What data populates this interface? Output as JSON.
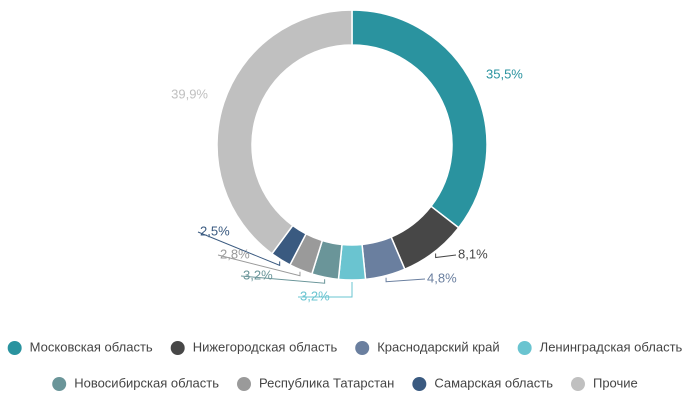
{
  "chart_data": {
    "type": "donut",
    "categories": [
      "Московская область",
      "Нижегородская область",
      "Краснодарский край",
      "Ленинградская область",
      "Новосибирская область",
      "Республика Татарстан",
      "Самарская область",
      "Прочие"
    ],
    "values": [
      35.5,
      8.1,
      4.8,
      3.2,
      3.2,
      2.8,
      2.5,
      39.9
    ],
    "value_labels": [
      "35,5%",
      "8,1%",
      "4,8%",
      "3,2%",
      "3,2%",
      "2,8%",
      "2,5%",
      "39,9%"
    ],
    "colors": [
      "#2a939f",
      "#474747",
      "#6a7f9f",
      "#6ac4d0",
      "#6a9599",
      "#9a9a9a",
      "#3a5a80",
      "#c0c0c0"
    ],
    "legend": "bottom"
  }
}
